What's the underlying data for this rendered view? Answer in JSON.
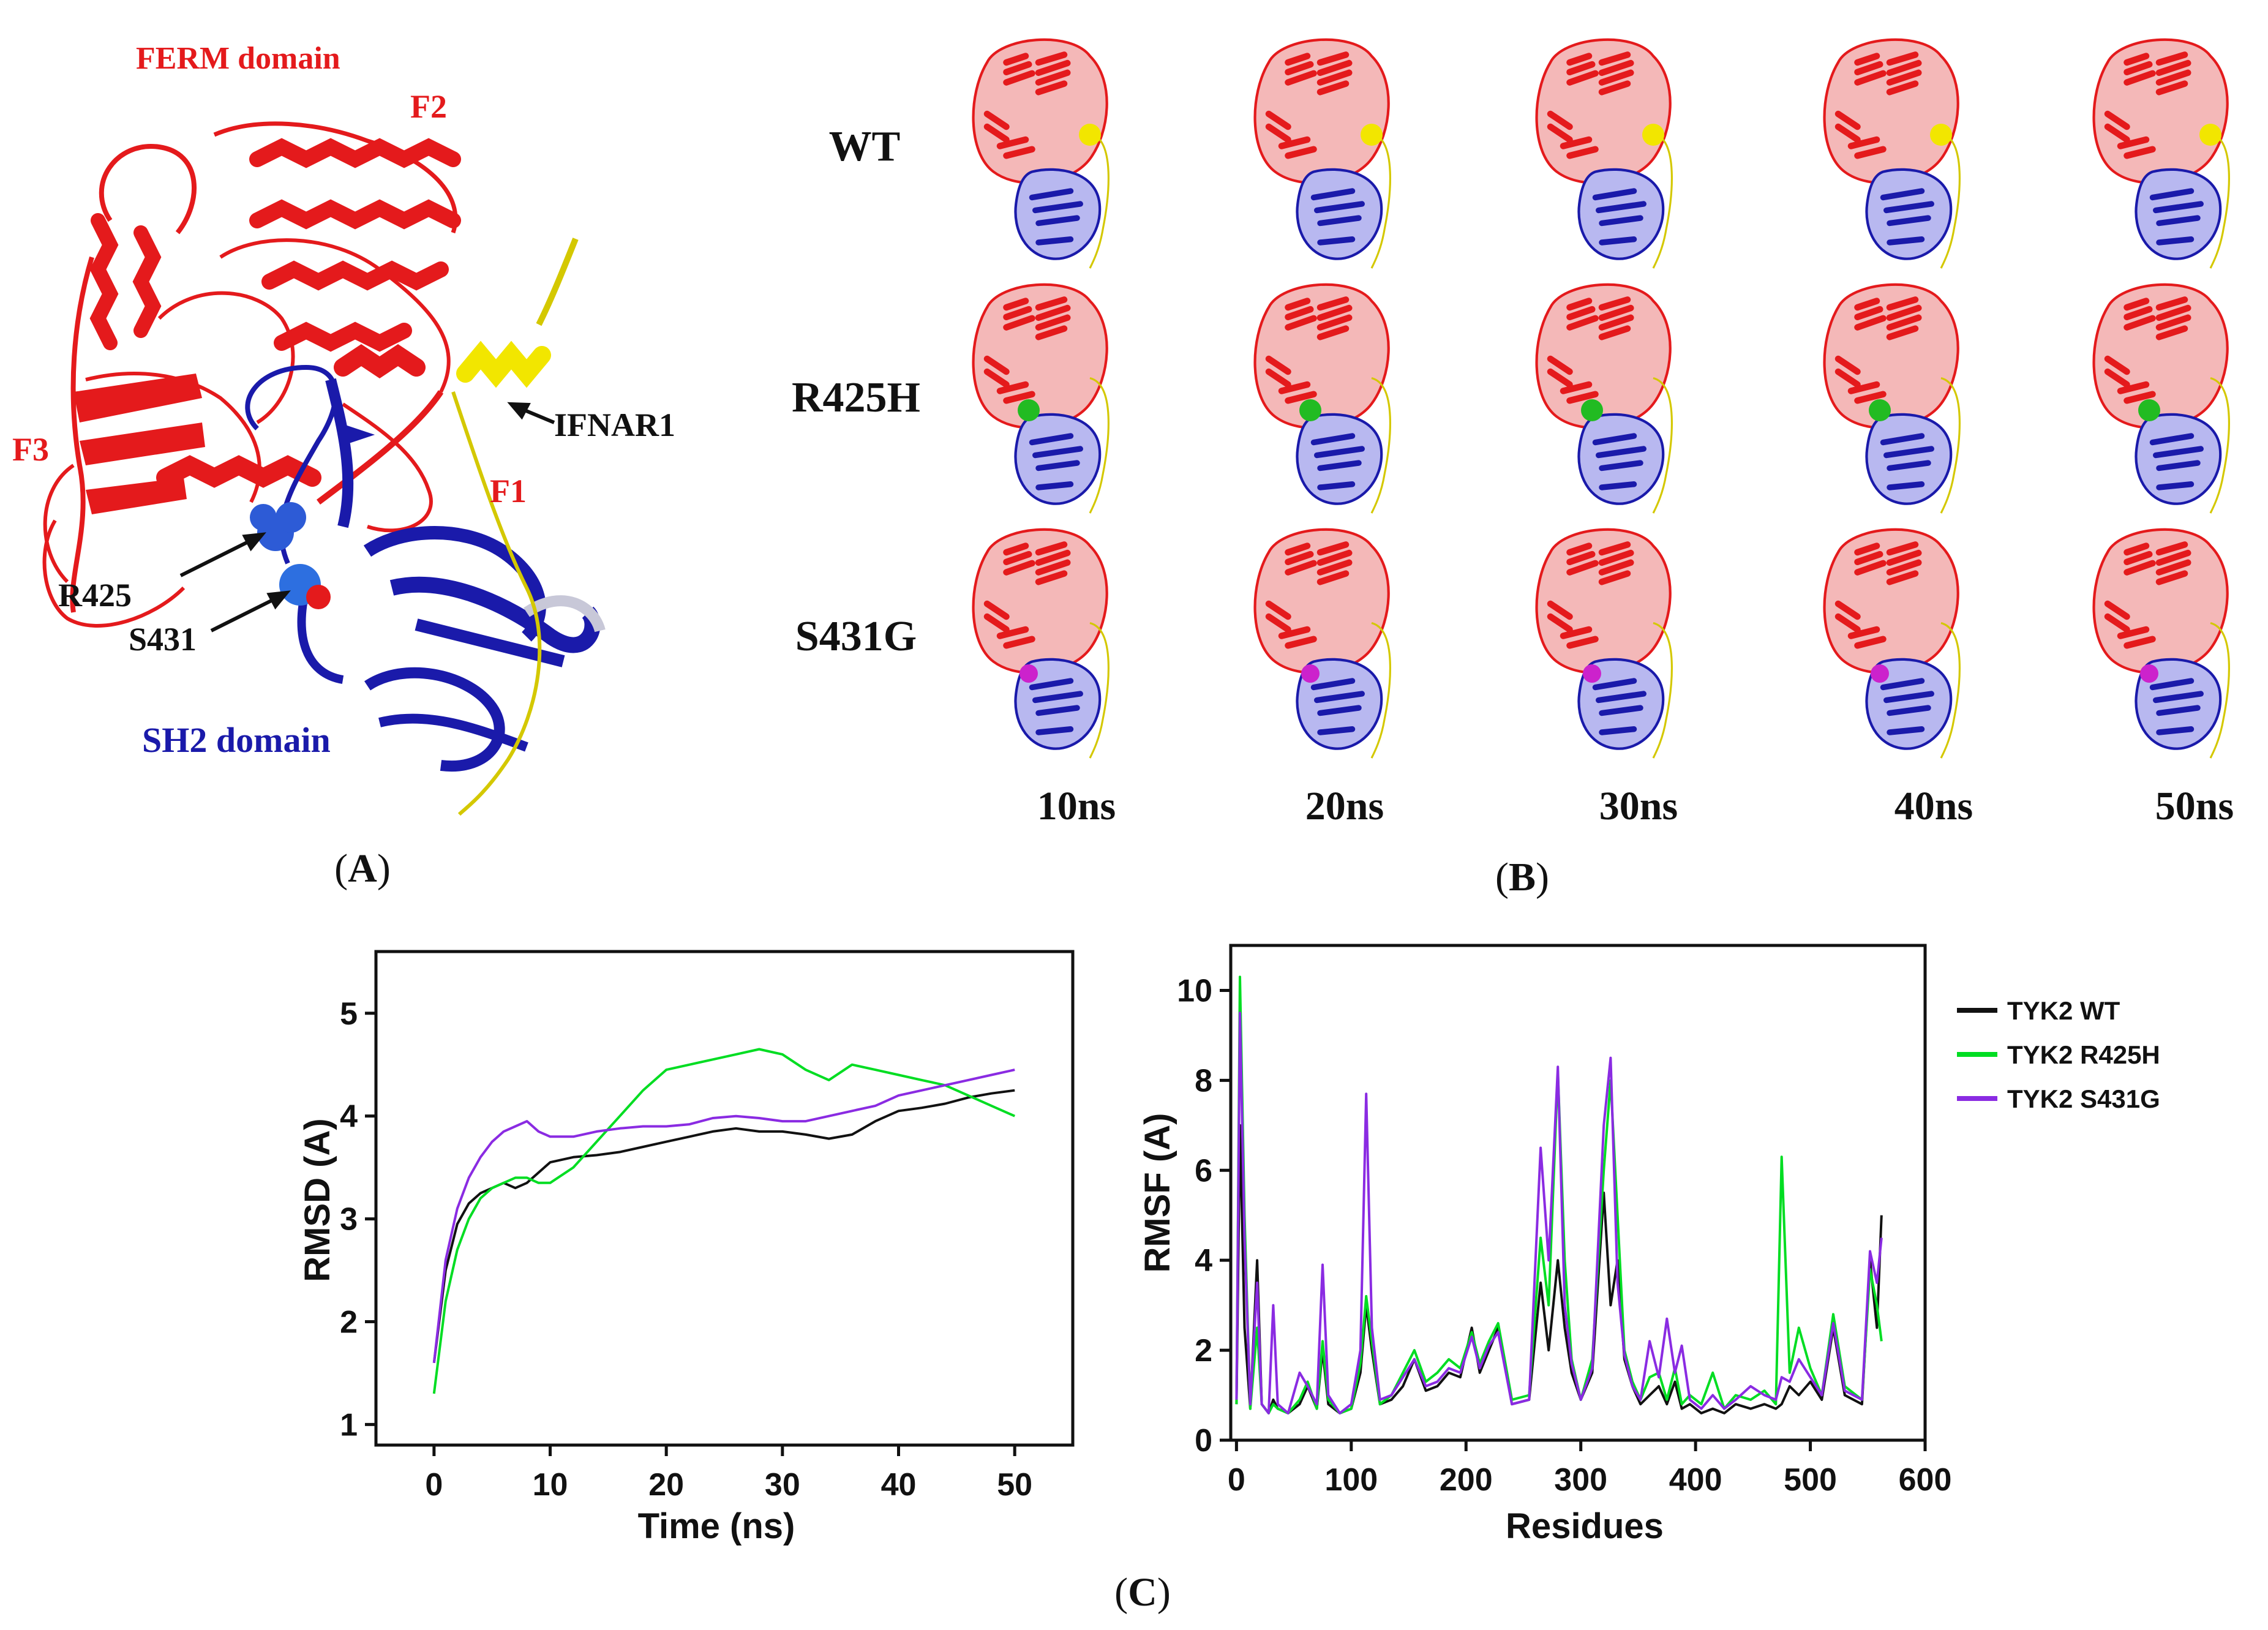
{
  "panel_a": {
    "caption_open": "(",
    "caption_letter": "A",
    "caption_close": ")",
    "labels": {
      "ferm_domain": "FERM domain",
      "f1": "F1",
      "f2": "F2",
      "f3": "F3",
      "ifnar1": "IFNAR1",
      "r425": "R425",
      "s431": "S431",
      "sh2_domain": "SH2 domain"
    }
  },
  "panel_b": {
    "caption_open": "(",
    "caption_letter": "B",
    "caption_close": ")",
    "rows": [
      "WT",
      "R425H",
      "S431G"
    ],
    "times": [
      "10ns",
      "20ns",
      "30ns",
      "40ns",
      "50ns"
    ]
  },
  "panel_c": {
    "caption_open": "(",
    "caption_letter": "C",
    "caption_close": ")"
  },
  "colors": {
    "ferm": "#e41a1c",
    "sh2": "#1a1aaa",
    "ifnar1": "#f2e600",
    "wt": "#111111",
    "r425h": "#00dd22",
    "s431g": "#8a2be2"
  },
  "chart_data": [
    {
      "type": "line",
      "xlabel": "Time (ns)",
      "ylabel": "RMSD (A)",
      "xlim": [
        -5,
        55
      ],
      "ylim": [
        0.8,
        5.6
      ],
      "xticks": [
        "0",
        "10",
        "20",
        "30",
        "40",
        "50"
      ],
      "yticks": [
        "1",
        "2",
        "3",
        "4",
        "5"
      ],
      "x": [
        0,
        1,
        2,
        3,
        4,
        5,
        6,
        7,
        8,
        9,
        10,
        12,
        14,
        16,
        18,
        20,
        22,
        24,
        26,
        28,
        30,
        32,
        34,
        36,
        38,
        40,
        42,
        44,
        46,
        48,
        50
      ],
      "series": [
        {
          "name": "TYK2 WT",
          "values": [
            1.6,
            2.5,
            2.95,
            3.15,
            3.25,
            3.3,
            3.35,
            3.3,
            3.35,
            3.45,
            3.55,
            3.6,
            3.62,
            3.65,
            3.7,
            3.75,
            3.8,
            3.85,
            3.88,
            3.85,
            3.85,
            3.82,
            3.78,
            3.82,
            3.95,
            4.05,
            4.08,
            4.12,
            4.18,
            4.22,
            4.25
          ]
        },
        {
          "name": "TYK2 R425H",
          "values": [
            1.3,
            2.2,
            2.7,
            3.0,
            3.2,
            3.3,
            3.35,
            3.4,
            3.4,
            3.35,
            3.35,
            3.5,
            3.75,
            4.0,
            4.25,
            4.45,
            4.5,
            4.55,
            4.6,
            4.65,
            4.6,
            4.45,
            4.35,
            4.5,
            4.45,
            4.4,
            4.35,
            4.3,
            4.2,
            4.1,
            4.0
          ]
        },
        {
          "name": "TYK2 S431G",
          "values": [
            1.6,
            2.6,
            3.1,
            3.4,
            3.6,
            3.75,
            3.85,
            3.9,
            3.95,
            3.85,
            3.8,
            3.8,
            3.85,
            3.88,
            3.9,
            3.9,
            3.92,
            3.98,
            4.0,
            3.98,
            3.95,
            3.95,
            4.0,
            4.05,
            4.1,
            4.2,
            4.25,
            4.3,
            4.35,
            4.4,
            4.45
          ]
        }
      ]
    },
    {
      "type": "line",
      "xlabel": "Residues",
      "ylabel": "RMSF (A)",
      "xlim": [
        -5,
        600
      ],
      "ylim": [
        0,
        11
      ],
      "xticks": [
        "0",
        "100",
        "200",
        "300",
        "400",
        "500",
        "600"
      ],
      "yticks": [
        "0",
        "2",
        "4",
        "6",
        "8",
        "10"
      ],
      "legend": [
        "TYK2 WT",
        "TYK2 R425H",
        "TYK2 S431G"
      ],
      "legend_position": "right",
      "x": [
        0,
        3,
        7,
        12,
        18,
        22,
        28,
        32,
        36,
        45,
        55,
        62,
        70,
        75,
        80,
        90,
        100,
        108,
        113,
        118,
        125,
        135,
        145,
        155,
        165,
        175,
        185,
        195,
        205,
        212,
        220,
        228,
        240,
        255,
        265,
        272,
        280,
        286,
        292,
        300,
        310,
        320,
        326,
        332,
        338,
        345,
        352,
        360,
        368,
        375,
        382,
        388,
        395,
        405,
        415,
        425,
        435,
        448,
        460,
        470,
        475,
        482,
        490,
        500,
        510,
        520,
        530,
        545,
        552,
        558,
        562
      ],
      "series": [
        {
          "name": "TYK2 WT",
          "values": [
            0.8,
            7.0,
            2.5,
            0.7,
            4.0,
            0.8,
            0.6,
            0.9,
            0.7,
            0.6,
            0.8,
            1.2,
            0.7,
            2.0,
            0.8,
            0.6,
            0.7,
            1.5,
            3.0,
            2.0,
            0.8,
            0.9,
            1.2,
            1.8,
            1.1,
            1.2,
            1.5,
            1.4,
            2.5,
            1.5,
            2.0,
            2.5,
            0.8,
            0.9,
            3.5,
            2.0,
            4.0,
            2.5,
            1.5,
            0.9,
            1.5,
            5.5,
            3.0,
            4.0,
            1.8,
            1.2,
            0.8,
            1.0,
            1.2,
            0.8,
            1.3,
            0.7,
            0.8,
            0.6,
            0.7,
            0.6,
            0.8,
            0.7,
            0.8,
            0.7,
            0.8,
            1.2,
            1.0,
            1.3,
            0.9,
            2.5,
            1.0,
            0.8,
            4.0,
            2.5,
            5.0
          ]
        },
        {
          "name": "TYK2 R425H",
          "values": [
            0.8,
            10.3,
            5.0,
            0.7,
            2.5,
            0.8,
            0.6,
            0.8,
            0.7,
            0.6,
            0.9,
            1.3,
            0.7,
            2.2,
            0.9,
            0.6,
            0.7,
            1.7,
            3.2,
            2.2,
            0.8,
            1.0,
            1.5,
            2.0,
            1.3,
            1.5,
            1.8,
            1.6,
            2.4,
            1.7,
            2.2,
            2.6,
            0.9,
            1.0,
            4.5,
            3.0,
            8.2,
            4.0,
            1.8,
            0.9,
            1.8,
            6.0,
            8.0,
            5.0,
            2.0,
            1.3,
            0.9,
            1.4,
            1.5,
            0.9,
            1.6,
            0.8,
            1.0,
            0.8,
            1.5,
            0.7,
            1.0,
            0.9,
            1.1,
            0.8,
            6.3,
            1.5,
            2.5,
            1.6,
            1.0,
            2.8,
            1.2,
            0.9,
            3.8,
            3.0,
            2.2
          ]
        },
        {
          "name": "TYK2 S431G",
          "values": [
            0.9,
            9.5,
            4.5,
            0.8,
            3.5,
            0.8,
            0.6,
            3.0,
            0.8,
            0.6,
            1.5,
            1.2,
            0.8,
            3.9,
            1.0,
            0.6,
            0.8,
            2.0,
            7.7,
            2.5,
            0.9,
            1.0,
            1.4,
            1.8,
            1.2,
            1.3,
            1.6,
            1.5,
            2.3,
            1.6,
            2.1,
            2.4,
            0.8,
            0.9,
            6.5,
            4.0,
            8.3,
            3.0,
            1.7,
            0.9,
            1.6,
            7.0,
            8.5,
            3.5,
            1.9,
            1.2,
            0.9,
            2.2,
            1.4,
            2.7,
            1.5,
            2.1,
            0.9,
            0.7,
            1.0,
            0.7,
            0.9,
            1.2,
            1.0,
            0.9,
            1.4,
            1.3,
            1.8,
            1.4,
            1.0,
            2.6,
            1.1,
            0.9,
            4.2,
            3.5,
            4.5
          ]
        }
      ]
    }
  ]
}
